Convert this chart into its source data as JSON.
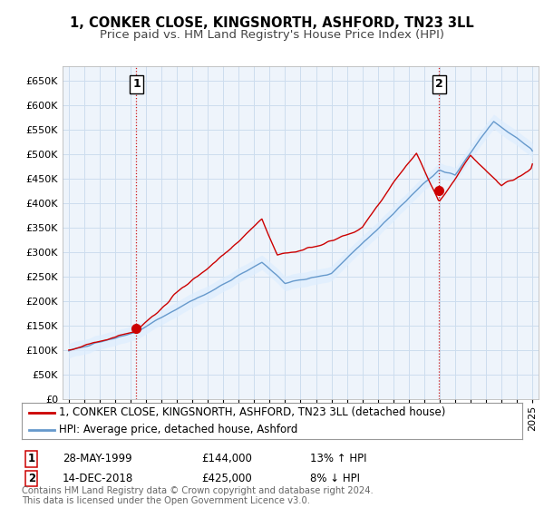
{
  "title": "1, CONKER CLOSE, KINGSNORTH, ASHFORD, TN23 3LL",
  "subtitle": "Price paid vs. HM Land Registry's House Price Index (HPI)",
  "ylim": [
    0,
    680000
  ],
  "yticks": [
    0,
    50000,
    100000,
    150000,
    200000,
    250000,
    300000,
    350000,
    400000,
    450000,
    500000,
    550000,
    600000,
    650000
  ],
  "xlim_start": 1994.6,
  "xlim_end": 2025.4,
  "sale1_year": 1999.38,
  "sale1_price": 144000,
  "sale1_label": "1",
  "sale1_date": "28-MAY-1999",
  "sale1_hpi_pct": "13% ↑ HPI",
  "sale2_year": 2018.96,
  "sale2_price": 425000,
  "sale2_label": "2",
  "sale2_date": "14-DEC-2018",
  "sale2_hpi_pct": "8% ↓ HPI",
  "legend_line1": "1, CONKER CLOSE, KINGSNORTH, ASHFORD, TN23 3LL (detached house)",
  "legend_line2": "HPI: Average price, detached house, Ashford",
  "footer": "Contains HM Land Registry data © Crown copyright and database right 2024.\nThis data is licensed under the Open Government Licence v3.0.",
  "sale_color": "#cc0000",
  "hpi_color": "#6699cc",
  "hpi_fill_color": "#ddeeff",
  "background_color": "#ffffff",
  "grid_color": "#ccddee",
  "vline_color": "#cc0000",
  "title_fontsize": 10.5,
  "subtitle_fontsize": 9.5,
  "tick_fontsize": 8,
  "legend_fontsize": 8.5,
  "annotation_fontsize": 8.5,
  "footer_fontsize": 7.2
}
